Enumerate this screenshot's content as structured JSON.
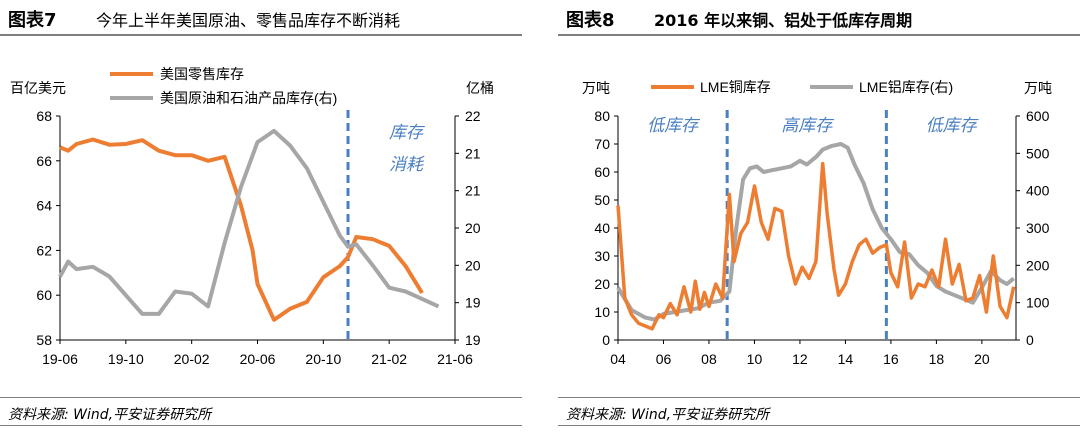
{
  "left": {
    "figure_label": "图表7",
    "figure_title": "今年上半年美国原油、零售品库存不断消耗",
    "source": "资料来源: Wind,平安证券研究所"
  },
  "right": {
    "figure_label": "图表8",
    "figure_title": "2016 年以来铜、铝处于低库存周期",
    "source": "资料来源: Wind,平安证券研究所"
  },
  "chart_data": [
    {
      "type": "line",
      "left_axis_unit": "百亿美元",
      "right_axis_unit": "亿桶",
      "ylim_left": [
        58,
        68
      ],
      "ylim_right": [
        19,
        22
      ],
      "y_ticks_left": [
        "58",
        "60",
        "62",
        "64",
        "66",
        "68"
      ],
      "y_ticks_right": [
        "19",
        "19",
        "20",
        "20",
        "21",
        "21",
        "22"
      ],
      "x_ticks": [
        "19-06",
        "19-10",
        "20-02",
        "20-06",
        "20-10",
        "21-02",
        "21-06"
      ],
      "legend_placement": "top-left",
      "annotation": [
        "库存",
        "消耗"
      ],
      "annotation_color": "#4a7fc1",
      "vline_month_index": 17.5,
      "series": [
        {
          "name": "美国零售库存",
          "axis": "left",
          "color": "#ed7d31",
          "x": [
            0,
            0.5,
            1,
            2,
            3,
            4,
            5,
            6,
            7,
            8,
            9,
            10,
            11,
            11.7,
            12,
            13,
            14,
            15,
            16,
            17,
            17.5,
            18,
            19,
            20,
            21,
            22
          ],
          "values": [
            66.6,
            66.45,
            66.75,
            66.95,
            66.72,
            66.75,
            66.92,
            66.45,
            66.25,
            66.25,
            66.0,
            66.18,
            64.0,
            62.0,
            60.5,
            58.9,
            59.4,
            59.7,
            60.8,
            61.3,
            61.7,
            62.6,
            62.5,
            62.2,
            61.3,
            60.1
          ]
        },
        {
          "name": "美国原油和石油产品库存(右)",
          "axis": "right",
          "color": "#a6a6a6",
          "x": [
            0,
            0.5,
            1,
            2,
            3,
            4,
            5,
            6,
            7,
            8,
            9,
            10,
            11,
            12,
            13,
            14,
            15,
            16,
            17,
            17.5,
            18,
            19,
            20,
            21,
            22,
            23
          ],
          "values": [
            19.85,
            20.05,
            19.95,
            19.98,
            19.85,
            19.6,
            19.35,
            19.35,
            19.65,
            19.62,
            19.45,
            20.3,
            21.05,
            21.65,
            21.8,
            21.6,
            21.3,
            20.85,
            20.4,
            20.25,
            20.28,
            20.0,
            19.7,
            19.65,
            19.55,
            19.45
          ]
        }
      ]
    },
    {
      "type": "line",
      "left_axis_unit": "万吨",
      "right_axis_unit": "万吨",
      "ylim_left": [
        0,
        80
      ],
      "ylim_right": [
        0,
        600
      ],
      "y_ticks_left": [
        "0",
        "10",
        "20",
        "30",
        "40",
        "50",
        "60",
        "70",
        "80"
      ],
      "y_ticks_right": [
        "0",
        "100",
        "200",
        "300",
        "400",
        "500",
        "600"
      ],
      "x_ticks": [
        "04",
        "06",
        "08",
        "10",
        "12",
        "14",
        "16",
        "18",
        "20"
      ],
      "xlim": [
        2004,
        2021.5
      ],
      "legend_placement": "top",
      "phase_labels": [
        "低库存",
        "高库存",
        "低库存"
      ],
      "phase_label_color": "#4a7fc1",
      "phase_boundaries": [
        2008.8,
        2015.8
      ],
      "series": [
        {
          "name": "LME铜库存",
          "axis": "left",
          "color": "#ed7d31",
          "x": [
            2004.0,
            2004.3,
            2004.6,
            2004.9,
            2005.2,
            2005.5,
            2005.8,
            2006.0,
            2006.3,
            2006.6,
            2006.9,
            2007.2,
            2007.4,
            2007.6,
            2007.8,
            2008.0,
            2008.3,
            2008.6,
            2008.9,
            2009.1,
            2009.4,
            2009.7,
            2010.0,
            2010.3,
            2010.6,
            2010.9,
            2011.2,
            2011.5,
            2011.8,
            2012.1,
            2012.4,
            2012.7,
            2013.0,
            2013.2,
            2013.5,
            2013.7,
            2014.0,
            2014.3,
            2014.6,
            2014.9,
            2015.2,
            2015.5,
            2015.8,
            2016.0,
            2016.3,
            2016.6,
            2016.9,
            2017.2,
            2017.5,
            2017.8,
            2018.1,
            2018.4,
            2018.7,
            2019.0,
            2019.3,
            2019.6,
            2019.9,
            2020.2,
            2020.5,
            2020.8,
            2021.1,
            2021.4
          ],
          "values": [
            48,
            15,
            9,
            6,
            5,
            4,
            9,
            8,
            13,
            9,
            19,
            10,
            21,
            11,
            17,
            12,
            20,
            15,
            52,
            28,
            38,
            42,
            55,
            42,
            36,
            47,
            46,
            30,
            20,
            26,
            22,
            28,
            63,
            45,
            25,
            16,
            20,
            28,
            34,
            36,
            31,
            33,
            34,
            24,
            19,
            35,
            15,
            20,
            19,
            25,
            19,
            36,
            20,
            27,
            14,
            15,
            23,
            10,
            30,
            12,
            8,
            19
          ]
        },
        {
          "name": "LME铝库存(右)",
          "axis": "right",
          "color": "#a6a6a6",
          "x": [
            2004.0,
            2004.3,
            2004.6,
            2004.9,
            2005.2,
            2005.6,
            2006.0,
            2006.5,
            2007.0,
            2007.5,
            2008.0,
            2008.5,
            2008.9,
            2009.2,
            2009.5,
            2009.8,
            2010.1,
            2010.4,
            2010.8,
            2011.2,
            2011.6,
            2012.0,
            2012.3,
            2012.7,
            2013.0,
            2013.4,
            2013.8,
            2014.1,
            2014.4,
            2014.8,
            2015.2,
            2015.6,
            2016.0,
            2016.4,
            2016.8,
            2017.2,
            2017.6,
            2018.0,
            2018.4,
            2018.8,
            2019.2,
            2019.6,
            2020.0,
            2020.4,
            2020.8,
            2021.1,
            2021.4
          ],
          "values": [
            140,
            110,
            80,
            70,
            60,
            55,
            70,
            75,
            80,
            85,
            100,
            105,
            130,
            300,
            430,
            460,
            465,
            450,
            455,
            460,
            465,
            480,
            470,
            490,
            510,
            520,
            525,
            515,
            470,
            420,
            350,
            300,
            270,
            235,
            230,
            200,
            180,
            145,
            130,
            120,
            110,
            100,
            140,
            185,
            160,
            150,
            165
          ]
        }
      ]
    }
  ]
}
